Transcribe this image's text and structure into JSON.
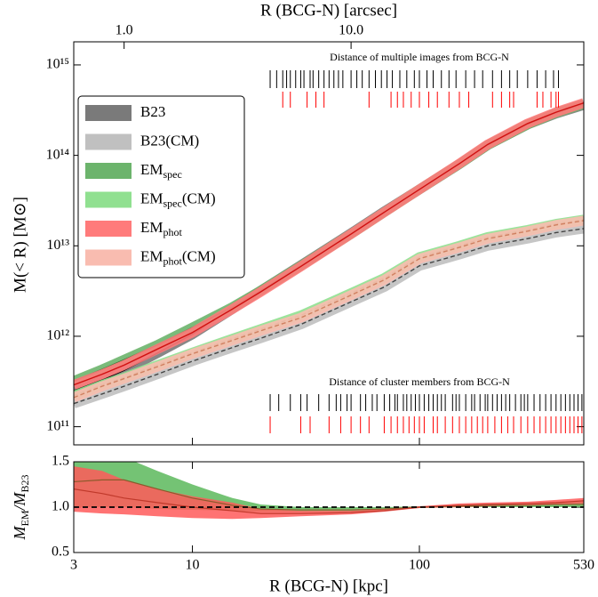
{
  "chart_data": [
    {
      "type": "line",
      "xlabel_top": "R (BCG-N) [arcsec]",
      "ylabel": "M(< R) [M⊙]",
      "log_x": true,
      "log_y": true,
      "xlim": [
        3,
        530
      ],
      "xlim_top": [
        0.6,
        106
      ],
      "xticks_top": [
        {
          "value": 1,
          "label": "1.0"
        },
        {
          "value": 10,
          "label": "10.0"
        }
      ],
      "ylim": [
        63000000000.0,
        1800000000000000.0
      ],
      "yticks": [
        {
          "value": 100000000000.0,
          "label": "10¹¹"
        },
        {
          "value": 1000000000000.0,
          "label": "10¹²"
        },
        {
          "value": 10000000000000.0,
          "label": "10¹³"
        },
        {
          "value": 100000000000000.0,
          "label": "10¹⁴"
        },
        {
          "value": 1000000000000000.0,
          "label": "10¹⁵"
        }
      ],
      "legend": "upper left",
      "x": [
        3,
        4,
        5,
        7,
        10,
        15,
        20,
        30,
        50,
        70,
        100,
        150,
        200,
        300,
        400,
        530
      ],
      "series": [
        {
          "name": "B23",
          "color": "#7a7a7a",
          "line_color": "#000000",
          "dashed": false,
          "values": [
            250000000000.0,
            330000000000.0,
            420000000000.0,
            650000000000.0,
            1050000000000.0,
            2000000000000.0,
            3200000000000.0,
            6100000000000.0,
            13800000000000.0,
            24000000000000.0,
            42000000000000.0,
            80000000000000.0,
            130000000000000.0,
            220000000000000.0,
            290000000000000.0,
            360000000000000.0
          ]
        },
        {
          "name": "B23(CM)",
          "color": "#c0c0c0",
          "line_color": "#444444",
          "dashed": true,
          "values": [
            180000000000.0,
            230000000000.0,
            280000000000.0,
            380000000000.0,
            530000000000.0,
            750000000000.0,
            950000000000.0,
            1350000000000.0,
            2400000000000.0,
            3500000000000.0,
            6000000000000.0,
            8000000000000.0,
            10000000000000.0,
            12000000000000.0,
            14000000000000.0,
            15500000000000.0
          ]
        },
        {
          "name": "EM",
          "name_sub": "spec",
          "color": "#6cb46c",
          "line_color": "#2e6b2e",
          "dashed": false,
          "values": [
            320000000000.0,
            430000000000.0,
            550000000000.0,
            800000000000.0,
            1250000000000.0,
            2100000000000.0,
            3200000000000.0,
            6000000000000.0,
            13500000000000.0,
            23500000000000.0,
            42000000000000.0,
            80000000000000.0,
            130000000000000.0,
            220000000000000.0,
            295000000000000.0,
            370000000000000.0
          ]
        },
        {
          "name": "EM",
          "name_sub": "spec",
          "name_suffix": "(CM)",
          "color": "#90e090",
          "line_color": "#6a8f3a",
          "dashed": true,
          "values": [
            220000000000.0,
            290000000000.0,
            350000000000.0,
            480000000000.0,
            660000000000.0,
            940000000000.0,
            1200000000000.0,
            1700000000000.0,
            3000000000000.0,
            4400000000000.0,
            7500000000000.0,
            10000000000000.0,
            12500000000000.0,
            15000000000000.0,
            17500000000000.0,
            19500000000000.0
          ]
        },
        {
          "name": "EM",
          "name_sub": "phot",
          "color": "#ff7b7b",
          "line_color": "#d01010",
          "dashed": false,
          "values": [
            290000000000.0,
            380000000000.0,
            480000000000.0,
            720000000000.0,
            1100000000000.0,
            2000000000000.0,
            3100000000000.0,
            5900000000000.0,
            13500000000000.0,
            23500000000000.0,
            42000000000000.0,
            81000000000000.0,
            132000000000000.0,
            225000000000000.0,
            300000000000000.0,
            380000000000000.0
          ]
        },
        {
          "name": "EM",
          "name_sub": "phot",
          "name_suffix": "(CM)",
          "color": "#f9bcb0",
          "line_color": "#d08060",
          "dashed": true,
          "values": [
            210000000000.0,
            280000000000.0,
            340000000000.0,
            460000000000.0,
            640000000000.0,
            900000000000.0,
            1150000000000.0,
            1600000000000.0,
            2850000000000.0,
            4200000000000.0,
            7200000000000.0,
            9600000000000.0,
            12000000000000.0,
            14500000000000.0,
            17000000000000.0,
            19000000000000.0
          ]
        }
      ],
      "rugs": [
        {
          "title": "Distance of multiple images from BCG-N",
          "sets": [
            {
              "color": "#000000",
              "positions": [
                22,
                23.5,
                25,
                26,
                27,
                28.5,
                30,
                31,
                33,
                34,
                36,
                38,
                40,
                42,
                44,
                46,
                50,
                53,
                56,
                60,
                64,
                68,
                72,
                76,
                82,
                88,
                95,
                100,
                108,
                115,
                125,
                135,
                145,
                160,
                175,
                190,
                210,
                230,
                250,
                270,
                300,
                330,
                360,
                390,
                410
              ]
            },
            {
              "color": "#ff0000",
              "positions": [
                25,
                27,
                32,
                35,
                38,
                60,
                75,
                80,
                85,
                92,
                100,
                110,
                120,
                135,
                150,
                165,
                210,
                230,
                250,
                260,
                330,
                350,
                380,
                400,
                410
              ]
            }
          ]
        },
        {
          "title": "Distance of cluster members from BCG-N",
          "sets": [
            {
              "color": "#000000",
              "positions": [
                22,
                24,
                27,
                30,
                32,
                36,
                40,
                43,
                45,
                48,
                50,
                55,
                58,
                62,
                65,
                70,
                74,
                78,
                80,
                85,
                88,
                92,
                96,
                100,
                105,
                110,
                115,
                120,
                125,
                130,
                140,
                145,
                150,
                160,
                170,
                175,
                185,
                195,
                200,
                210,
                220,
                230,
                240,
                250,
                265,
                280,
                290,
                300,
                320,
                340,
                360,
                380,
                400,
                420,
                440,
                460,
                480,
                500,
                520
              ]
            },
            {
              "color": "#ff0000",
              "positions": [
                22,
                30,
                33,
                40,
                45,
                50,
                55,
                60,
                70,
                75,
                80,
                85,
                90,
                95,
                100,
                105,
                115,
                120,
                130,
                140,
                150,
                160,
                170,
                180,
                190,
                200,
                215,
                230,
                245,
                260,
                280,
                300,
                320,
                340,
                360,
                380,
                400,
                420,
                440,
                460,
                480,
                500,
                520
              ]
            }
          ]
        }
      ]
    },
    {
      "type": "band",
      "xlabel": "R (BCG-N) [kpc]",
      "ylabel": [
        "M",
        "EM",
        "/M",
        "B23"
      ],
      "log_x": true,
      "xlim": [
        3,
        530
      ],
      "xticks": [
        3,
        10,
        100,
        530
      ],
      "ylim": [
        0.5,
        1.5
      ],
      "yticks": [
        0.5,
        {
          "value": 1.0,
          "label": "1.0"
        },
        1.5
      ],
      "x": [
        3,
        4,
        5,
        7,
        10,
        15,
        20,
        30,
        50,
        70,
        100,
        150,
        200,
        300,
        400,
        530
      ],
      "series": [
        {
          "color": "#5cb85c",
          "line_color": "#8b5a2b",
          "values": [
            1.28,
            1.3,
            1.3,
            1.2,
            1.1,
            1.02,
            0.98,
            0.97,
            0.97,
            0.98,
            1.0,
            1.01,
            1.02,
            1.02,
            1.03,
            1.03
          ],
          "lower": [
            1.0,
            1.0,
            1.0,
            0.98,
            0.97,
            0.96,
            0.95,
            0.95,
            0.95,
            0.96,
            0.99,
            1.0,
            1.0,
            1.0,
            1.0,
            1.0
          ],
          "upper": [
            1.6,
            1.6,
            1.55,
            1.4,
            1.25,
            1.1,
            1.03,
            1.0,
            1.0,
            1.0,
            1.01,
            1.02,
            1.03,
            1.04,
            1.05,
            1.06
          ]
        },
        {
          "color": "#ff5a5a",
          "line_color": "#c0392b",
          "values": [
            1.2,
            1.15,
            1.1,
            1.05,
            1.0,
            0.96,
            0.93,
            0.93,
            0.94,
            0.96,
            1.0,
            1.02,
            1.03,
            1.04,
            1.05,
            1.07
          ],
          "lower": [
            0.95,
            0.93,
            0.92,
            0.9,
            0.88,
            0.87,
            0.88,
            0.9,
            0.92,
            0.95,
            0.99,
            1.0,
            1.01,
            1.02,
            1.03,
            1.04
          ],
          "upper": [
            1.45,
            1.4,
            1.3,
            1.2,
            1.12,
            1.05,
            0.98,
            0.96,
            0.96,
            0.98,
            1.01,
            1.04,
            1.05,
            1.06,
            1.08,
            1.1
          ]
        }
      ]
    }
  ]
}
